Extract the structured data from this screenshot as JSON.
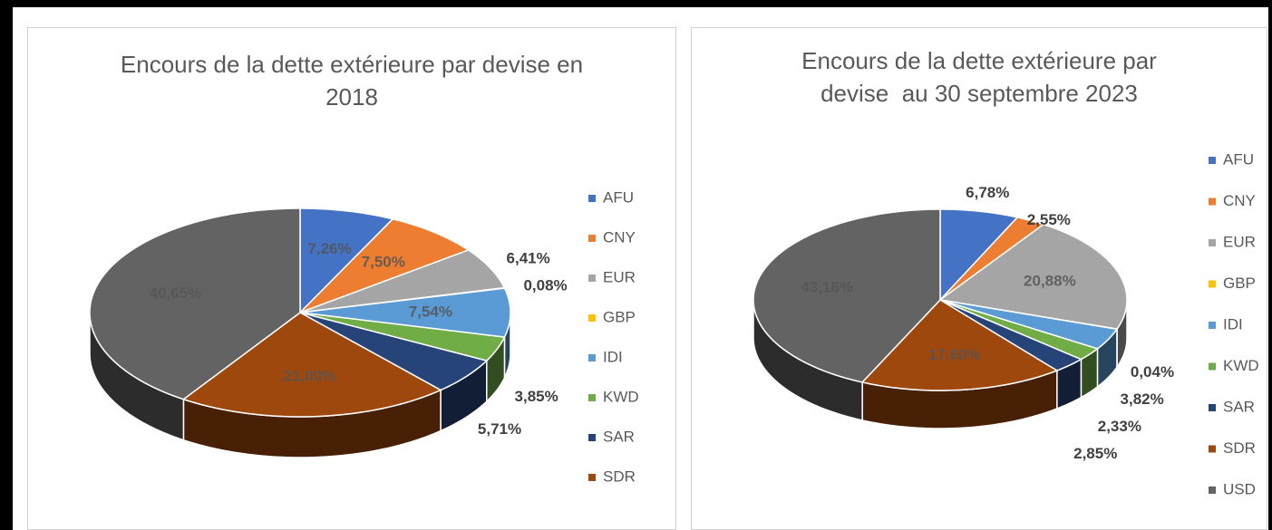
{
  "chart_data": [
    {
      "type": "pie",
      "title": "Encours de la dette extérieure par devise en 2018",
      "categories": [
        "AFU",
        "CNY",
        "EUR",
        "GBP",
        "IDI",
        "KWD",
        "SAR",
        "SDR",
        null
      ],
      "values": [
        7.26,
        7.5,
        6.41,
        0.08,
        7.54,
        3.85,
        5.71,
        21.0,
        40.65
      ],
      "value_labels": [
        "7,26%",
        "7,50%",
        "6,41%",
        "0,08%",
        "7,54%",
        "3,85%",
        "5,71%",
        "21,00%",
        "40,65%"
      ],
      "colors": [
        "#4472c4",
        "#ed7d31",
        "#a5a5a5",
        "#ffc000",
        "#5b9bd5",
        "#70ad47",
        "#264478",
        "#9e480e",
        "#636363"
      ],
      "legend": "right"
    },
    {
      "type": "pie",
      "title": "Encours de la dette extérieure par devise  au 30 septembre 2023",
      "categories": [
        "AFU",
        "CNY",
        "EUR",
        "GBP",
        "IDI",
        "KWD",
        "SAR",
        "SDR",
        "USD"
      ],
      "values": [
        6.78,
        2.55,
        20.88,
        0.04,
        3.82,
        2.33,
        2.85,
        17.6,
        43.16
      ],
      "value_labels": [
        "6,78%",
        "2,55%",
        "20,88%",
        "0,04%",
        "3,82%",
        "2,33%",
        "2,85%",
        "17,60%",
        "43,16%"
      ],
      "colors": [
        "#4472c4",
        "#ed7d31",
        "#a5a5a5",
        "#ffc000",
        "#5b9bd5",
        "#70ad47",
        "#264478",
        "#9e480e",
        "#636363"
      ],
      "legend": "right"
    }
  ]
}
